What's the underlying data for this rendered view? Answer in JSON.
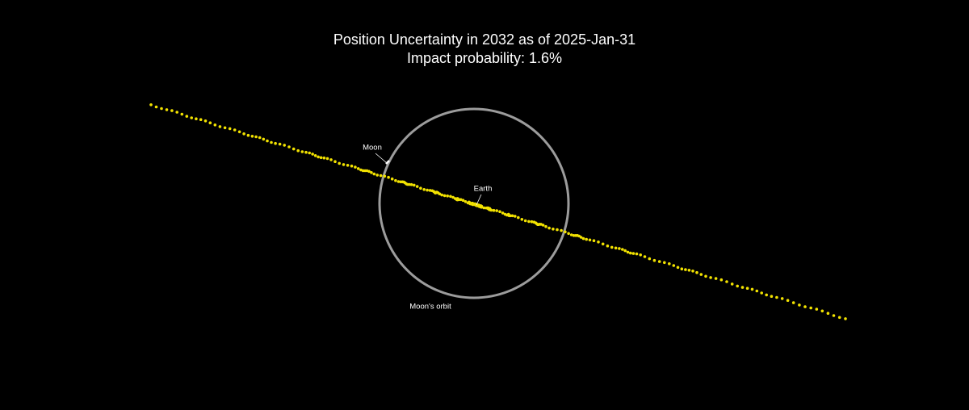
{
  "title": {
    "line1": "Position Uncertainty in 2032 as of 2025-Jan-31",
    "line2": "Impact probability: 1.6%"
  },
  "labels": {
    "moon": "Moon",
    "earth": "Earth",
    "orbit": "Moon's orbit"
  }
}
